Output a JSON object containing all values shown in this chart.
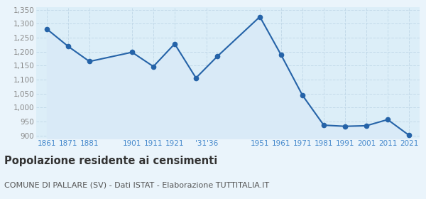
{
  "years": [
    1861,
    1871,
    1881,
    1901,
    1911,
    1921,
    1931,
    1936,
    1951,
    1961,
    1971,
    1981,
    1991,
    2001,
    2011,
    2021
  ],
  "values": [
    1281,
    1219,
    1165,
    1198,
    1147,
    1228,
    1106,
    1183,
    1325,
    1188,
    1044,
    937,
    933,
    935,
    957,
    901
  ],
  "line_color": "#2563a8",
  "fill_color": "#d9eaf7",
  "marker_color": "#2563a8",
  "background_color": "#eaf4fb",
  "plot_bg_color": "#dceef8",
  "grid_color": "#c0d8e8",
  "ylim_min": 890,
  "ylim_max": 1360,
  "yticks": [
    900,
    950,
    1000,
    1050,
    1100,
    1150,
    1200,
    1250,
    1300,
    1350
  ],
  "xtick_labels": [
    "1861",
    "1871",
    "1881",
    "",
    "1901",
    "1911",
    "1921",
    "'31'36",
    "",
    "1951",
    "1961",
    "1971",
    "1981",
    "1991",
    "2001",
    "2011",
    "2021"
  ],
  "title": "Popolazione residente ai censimenti",
  "subtitle": "COMUNE DI PALLARE (SV) - Dati ISTAT - Elaborazione TUTTITALIA.IT",
  "title_fontsize": 10.5,
  "subtitle_fontsize": 8,
  "tick_color": "#4488cc",
  "ytick_color": "#888888"
}
